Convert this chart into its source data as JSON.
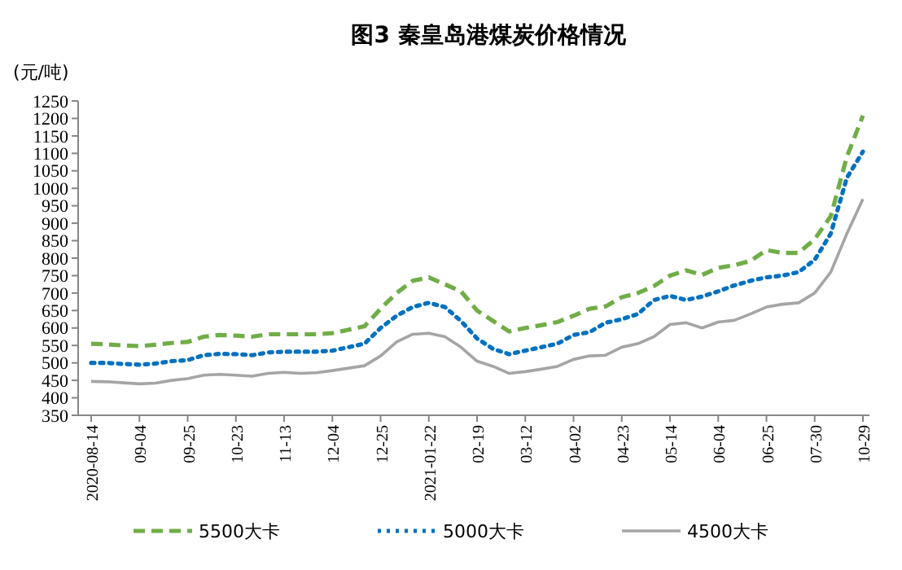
{
  "chart_data": {
    "type": "line",
    "title": "图3   秦皇岛港煤炭价格情况",
    "ylabel": "(元/吨)",
    "categories": [
      "2020-08-14",
      null,
      null,
      "09-04",
      null,
      null,
      "09-25",
      null,
      null,
      "10-23",
      null,
      null,
      "11-13",
      null,
      null,
      "12-04",
      null,
      null,
      "12-25",
      null,
      null,
      "2021-01-22",
      null,
      null,
      "02-19",
      null,
      null,
      "03-12",
      null,
      null,
      "04-02",
      null,
      null,
      "04-23",
      null,
      null,
      "05-14",
      null,
      null,
      "06-04",
      null,
      null,
      "06-25",
      null,
      null,
      "07-30",
      null,
      null,
      "10-29"
    ],
    "series": [
      {
        "name": "5500大卡",
        "color": "#70ad47",
        "line_style": "dashed",
        "values": [
          555,
          553,
          550,
          548,
          552,
          557,
          560,
          575,
          580,
          578,
          575,
          582,
          582,
          582,
          582,
          585,
          595,
          605,
          655,
          700,
          735,
          745,
          725,
          705,
          650,
          620,
          590,
          600,
          608,
          617,
          635,
          655,
          662,
          688,
          700,
          720,
          750,
          765,
          752,
          772,
          780,
          792,
          823,
          815,
          815,
          854,
          920,
          1090,
          1208
        ]
      },
      {
        "name": "5000大卡",
        "color": "#0070c0",
        "line_style": "dotted",
        "values": [
          500,
          500,
          497,
          495,
          498,
          505,
          508,
          522,
          526,
          525,
          522,
          530,
          532,
          532,
          532,
          535,
          545,
          555,
          600,
          635,
          660,
          672,
          660,
          620,
          570,
          540,
          525,
          535,
          545,
          555,
          580,
          588,
          615,
          625,
          640,
          680,
          692,
          680,
          690,
          705,
          722,
          735,
          745,
          750,
          760,
          795,
          870,
          1030,
          1105
        ]
      },
      {
        "name": "4500大卡",
        "color": "#a5a5a5",
        "line_style": "solid",
        "values": [
          447,
          446,
          443,
          440,
          442,
          450,
          455,
          465,
          467,
          465,
          462,
          470,
          473,
          470,
          472,
          478,
          485,
          492,
          520,
          560,
          582,
          585,
          575,
          545,
          505,
          490,
          470,
          475,
          482,
          490,
          510,
          520,
          522,
          545,
          555,
          575,
          610,
          615,
          600,
          617,
          622,
          640,
          660,
          668,
          672,
          700,
          760,
          870,
          969
        ]
      }
    ],
    "ylim": [
      350,
      1250
    ],
    "yticks": [
      350,
      400,
      450,
      500,
      550,
      600,
      650,
      700,
      750,
      800,
      850,
      900,
      950,
      1000,
      1050,
      1100,
      1150,
      1200,
      1250
    ],
    "grid": false,
    "legend": "bottom",
    "marker": "none"
  }
}
